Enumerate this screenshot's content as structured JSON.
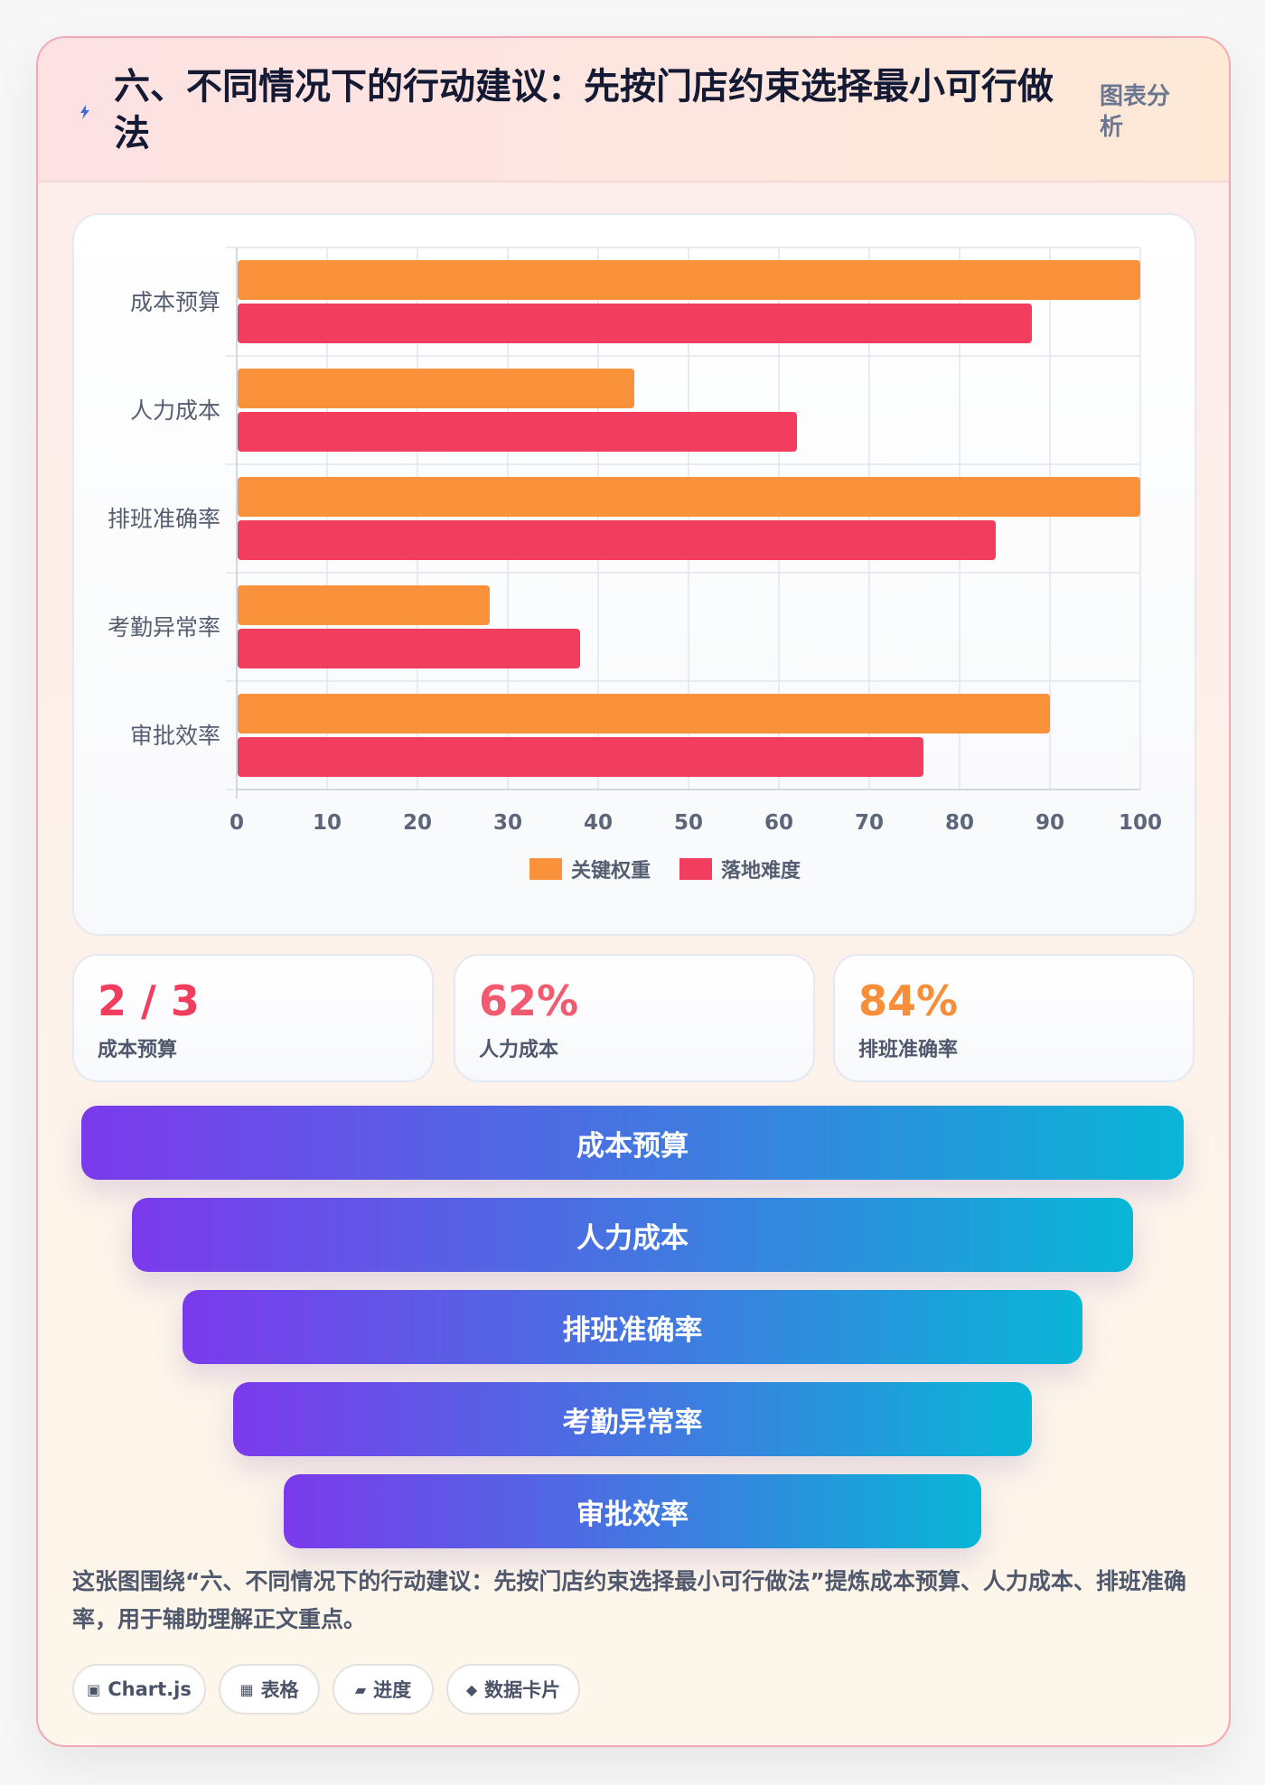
{
  "header": {
    "icon": "lightning-icon",
    "title": "六、不同情况下的行动建议：先按门店约束选择最小可行做法",
    "tag": "图表分析"
  },
  "colors": {
    "orange": "#fa923b",
    "red": "#f23e5e",
    "funnel_start": "#7b3aec",
    "funnel_end": "#08b6d6"
  },
  "chart_data": {
    "type": "bar",
    "orientation": "horizontal",
    "categories": [
      "成本预算",
      "人力成本",
      "排班准确率",
      "考勤异常率",
      "审批效率"
    ],
    "series": [
      {
        "name": "关键权重",
        "color": "#fa923b",
        "values": [
          100,
          44,
          100,
          28,
          90
        ]
      },
      {
        "name": "落地难度",
        "color": "#f23e5e",
        "values": [
          88,
          62,
          84,
          38,
          76
        ]
      }
    ],
    "xlim": [
      0,
      100
    ],
    "xticks": [
      0,
      10,
      20,
      30,
      40,
      50,
      60,
      70,
      80,
      90,
      100
    ],
    "grid": true,
    "legend": "bottom"
  },
  "kpis": [
    {
      "value": "2 / 3",
      "label": "成本预算",
      "color": "#f23e5e"
    },
    {
      "value": "62%",
      "label": "人力成本",
      "color": "#f25a70"
    },
    {
      "value": "84%",
      "label": "排班准确率",
      "color": "#f98e3a"
    }
  ],
  "funnel": [
    "成本预算",
    "人力成本",
    "排班准确率",
    "考勤异常率",
    "审批效率"
  ],
  "note": "这张图围绕“六、不同情况下的行动建议：先按门店约束选择最小可行做法”提炼成本预算、人力成本、排班准确率，用于辅助理解正文重点。",
  "chips": [
    {
      "icon": "▣",
      "label": "Chart.js"
    },
    {
      "icon": "▦",
      "label": "表格"
    },
    {
      "icon": "▰",
      "label": "进度"
    },
    {
      "icon": "◆",
      "label": "数据卡片"
    }
  ]
}
